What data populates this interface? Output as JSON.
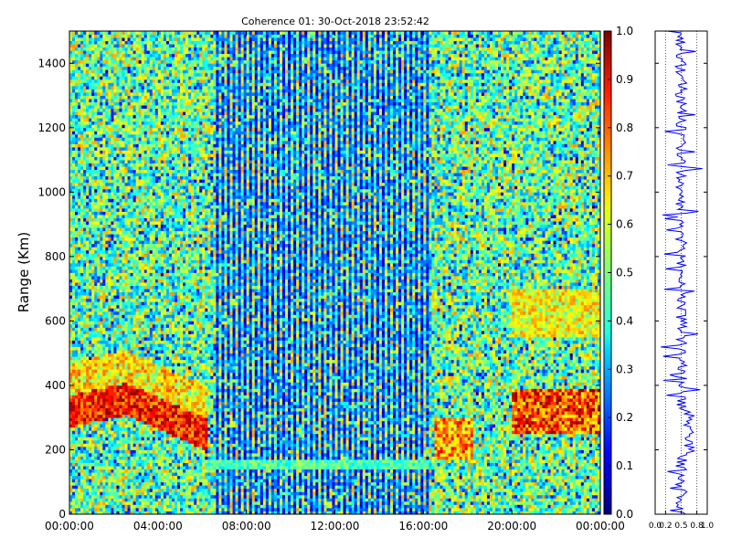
{
  "chart_data": [
    {
      "type": "heatmap",
      "title": "Coherence 01: 30-Oct-2018 23:52:42",
      "xlabel": "",
      "ylabel": "Range (Km)",
      "x_ticks": [
        "00:00:00",
        "04:00:00",
        "08:00:00",
        "12:00:00",
        "16:00:00",
        "20:00:00",
        "00:00:00"
      ],
      "y_ticks": [
        "0",
        "200",
        "400",
        "600",
        "800",
        "1000",
        "1200",
        "1400"
      ],
      "x_range_hours": [
        0,
        24
      ],
      "ylim": [
        0,
        1500
      ],
      "colormap": "jet",
      "grid": false,
      "features": [
        {
          "description": "strong echo layer",
          "x_hours": [
            0,
            6.5
          ],
          "range_km": [
            250,
            420
          ],
          "value": 0.85
        },
        {
          "description": "low-coherence band",
          "x_hours": [
            6.5,
            16.5
          ],
          "range_km": [
            0,
            1500
          ],
          "value": 0.1
        },
        {
          "description": "thin echo line",
          "x_hours": [
            6.3,
            16.3
          ],
          "range_km": [
            150,
            160
          ],
          "value": 0.5
        },
        {
          "description": "echo layer",
          "x_hours": [
            20,
            24
          ],
          "range_km": [
            250,
            380
          ],
          "value": 0.85
        },
        {
          "description": "weak echo",
          "x_hours": [
            16.5,
            18
          ],
          "range_km": [
            180,
            300
          ],
          "value": 0.7
        }
      ]
    },
    {
      "type": "colorbar",
      "ticks": [
        "0.0",
        "0.1",
        "0.2",
        "0.3",
        "0.4",
        "0.5",
        "0.6",
        "0.7",
        "0.8",
        "0.9",
        "1.0"
      ],
      "range": [
        0,
        1
      ]
    },
    {
      "type": "line",
      "x_ticks": [
        "0.0",
        "0.2",
        "0.5",
        "0.8",
        "1.0"
      ],
      "xlim": [
        0,
        1
      ],
      "ylim": [
        0,
        1500
      ],
      "series_color": "#0000ff",
      "mean_value": 0.5
    }
  ]
}
